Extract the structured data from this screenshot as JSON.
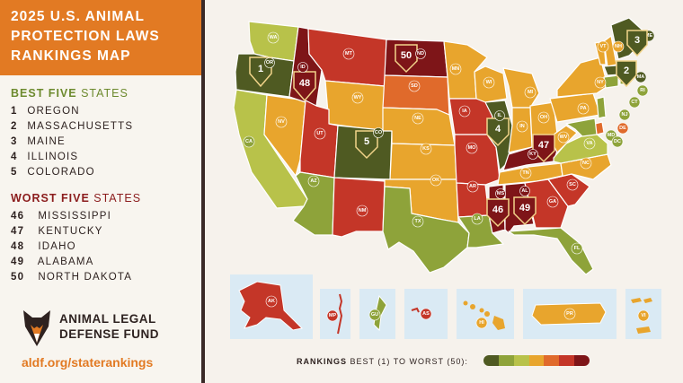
{
  "title": {
    "line1": "2025 U.S. ANIMAL",
    "line2": "PROTECTION LAWS",
    "line3": "RANKINGS MAP"
  },
  "best": {
    "heading_strong": "BEST FIVE",
    "heading_rest": "STATES",
    "items": [
      {
        "rank": "1",
        "name": "OREGON"
      },
      {
        "rank": "2",
        "name": "MASSACHUSETTS"
      },
      {
        "rank": "3",
        "name": "MAINE"
      },
      {
        "rank": "4",
        "name": "ILLINOIS"
      },
      {
        "rank": "5",
        "name": "COLORADO"
      }
    ]
  },
  "worst": {
    "heading_strong": "WORST FIVE",
    "heading_rest": "STATES",
    "items": [
      {
        "rank": "46",
        "name": "MISSISSIPPI"
      },
      {
        "rank": "47",
        "name": "KENTUCKY"
      },
      {
        "rank": "48",
        "name": "IDAHO"
      },
      {
        "rank": "49",
        "name": "ALABAMA"
      },
      {
        "rank": "50",
        "name": "NORTH DAKOTA"
      }
    ]
  },
  "logo": {
    "line1": "ANIMAL LEGAL",
    "line2": "DEFENSE FUND"
  },
  "url": "aldf.org/staterankings",
  "legend": {
    "strong": "RANKINGS",
    "rest": "BEST (1) TO WORST (50):",
    "colors": [
      "#4f5a22",
      "#8ea33a",
      "#b8c24a",
      "#e8a52d",
      "#e06a2b",
      "#c43628",
      "#7e1518"
    ]
  },
  "states": {
    "WA": "WA",
    "OR": "OR",
    "CA": "CA",
    "NV": "NV",
    "ID": "ID",
    "MT": "MT",
    "WY": "WY",
    "UT": "UT",
    "AZ": "AZ",
    "CO": "CO",
    "NM": "NM",
    "ND": "ND",
    "SD": "SD",
    "NE": "NE",
    "KS": "KS",
    "OK": "OK",
    "TX": "TX",
    "MN": "MN",
    "IA": "IA",
    "MO": "MO",
    "AR": "AR",
    "LA": "LA",
    "WI": "WI",
    "IL": "IL",
    "MI": "MI",
    "IN": "IN",
    "OH": "OH",
    "KY": "KY",
    "TN": "TN",
    "MS": "MS",
    "AL": "AL",
    "GA": "GA",
    "FL": "FL",
    "SC": "SC",
    "NC": "NC",
    "VA": "VA",
    "WV": "WV",
    "PA": "PA",
    "NY": "NY",
    "VT": "VT",
    "NH": "NH",
    "ME": "ME",
    "MA": "MA",
    "RI": "RI",
    "CT": "CT",
    "NJ": "NJ",
    "DE": "DE",
    "MD": "MD",
    "DC": "DC",
    "AK": "AK",
    "HI": "HI",
    "MP": "MP",
    "GU": "GU",
    "AS": "AS",
    "PR": "PR",
    "VI": "VI"
  },
  "rank_pins": {
    "OR": "1",
    "MA": "2",
    "ME": "3",
    "IL": "4",
    "CO": "5",
    "MS": "46",
    "KY": "47",
    "ID": "48",
    "AL": "49",
    "ND": "50"
  },
  "colors": {
    "best": "#4f5a22",
    "tier1": "#8ea33a",
    "tier2": "#b8c24a",
    "tier3": "#e8a52d",
    "tier4": "#e06a2b",
    "tier5": "#c43628",
    "worst": "#7e1518"
  }
}
